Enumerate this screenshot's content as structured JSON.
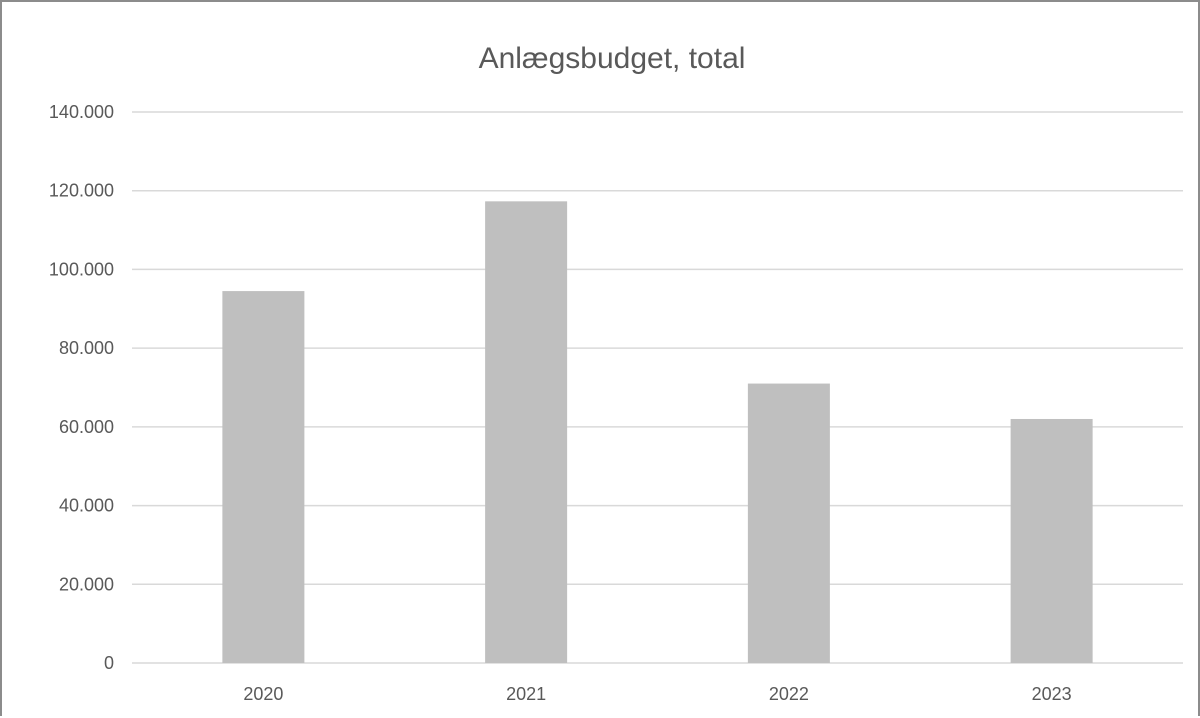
{
  "chart_data": {
    "type": "bar",
    "title": "Anlægsbudget, total",
    "xlabel": "",
    "ylabel": "",
    "categories": [
      "2020",
      "2021",
      "2022",
      "2023"
    ],
    "values": [
      94500,
      117300,
      71000,
      62000
    ],
    "ylim": [
      0,
      140000
    ],
    "yticks": [
      0,
      20000,
      40000,
      60000,
      80000,
      100000,
      120000,
      140000
    ],
    "ytick_labels": [
      "0",
      "20.000",
      "40.000",
      "60.000",
      "80.000",
      "100.000",
      "120.000",
      "140.000"
    ],
    "grid": true,
    "legend": "none",
    "colors": {
      "bar": "#bfbfbf",
      "gridline": "#d9d9d9",
      "axis": "#d9d9d9",
      "text": "#595959",
      "border": "#8c8c8c"
    }
  }
}
